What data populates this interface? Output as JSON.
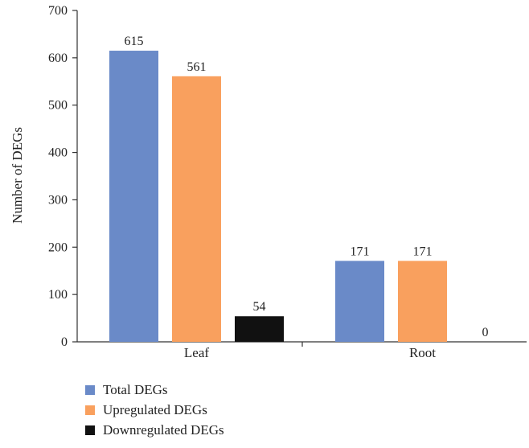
{
  "chart_data": {
    "type": "bar",
    "ylabel": "Number of DEGs",
    "xlabel": "",
    "ylim": [
      0,
      700
    ],
    "yticks": [
      0,
      100,
      200,
      300,
      400,
      500,
      600,
      700
    ],
    "categories": [
      "Leaf",
      "Root"
    ],
    "series": [
      {
        "name": "Total DEGs",
        "values": [
          615,
          171
        ],
        "color": "#6a8ac8"
      },
      {
        "name": "Upregulated DEGs",
        "values": [
          561,
          171
        ],
        "color": "#f9a05e"
      },
      {
        "name": "Downregulated DEGs",
        "values": [
          54,
          0
        ],
        "color": "#111111"
      }
    ],
    "legend_position": "bottom-left",
    "grid": false
  }
}
